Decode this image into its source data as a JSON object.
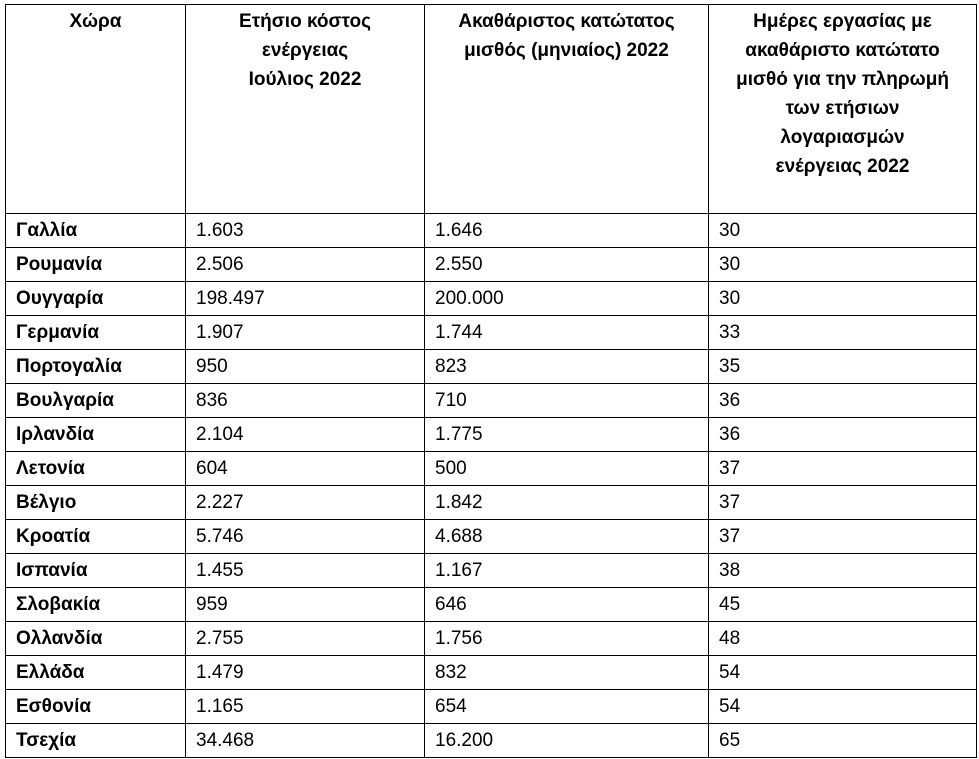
{
  "table": {
    "headers": [
      "Χώρα",
      "Ετήσιο κόστος\nενέργειας\nΙούλιος 2022",
      "Ακαθάριστος κατώτατος\nμισθός (μηνιαίος) 2022",
      "Ημέρες εργασίας με\nακαθάριστο κατώτατο\nμισθό για την πληρωμή\nτων ετήσιων\nλογαριασμών\nενέργειας 2022"
    ],
    "rows": [
      {
        "country": "Γαλλία",
        "cost": "1.603",
        "wage": "1.646",
        "days": "30"
      },
      {
        "country": "Ρουμανία",
        "cost": "2.506",
        "wage": "2.550",
        "days": "30"
      },
      {
        "country": "Ουγγαρία",
        "cost": "198.497",
        "wage": "200.000",
        "days": "30"
      },
      {
        "country": "Γερμανία",
        "cost": "1.907",
        "wage": "1.744",
        "days": "33"
      },
      {
        "country": "Πορτογαλία",
        "cost": "950",
        "wage": "823",
        "days": "35"
      },
      {
        "country": "Βουλγαρία",
        "cost": "836",
        "wage": "710",
        "days": "36"
      },
      {
        "country": "Ιρλανδία",
        "cost": "2.104",
        "wage": "1.775",
        "days": "36"
      },
      {
        "country": "Λετονία",
        "cost": "604",
        "wage": "500",
        "days": "37"
      },
      {
        "country": "Βέλγιο",
        "cost": "2.227",
        "wage": "1.842",
        "days": "37"
      },
      {
        "country": "Κροατία",
        "cost": "5.746",
        "wage": "4.688",
        "days": "37"
      },
      {
        "country": "Ισπανία",
        "cost": "1.455",
        "wage": "1.167",
        "days": "38"
      },
      {
        "country": "Σλοβακία",
        "cost": "959",
        "wage": "646",
        "days": "45"
      },
      {
        "country": "Ολλανδία",
        "cost": "2.755",
        "wage": "1.756",
        "days": "48"
      },
      {
        "country": "Ελλάδα",
        "cost": "1.479",
        "wage": "832",
        "days": "54"
      },
      {
        "country": "Εσθονία",
        "cost": "1.165",
        "wage": "654",
        "days": "54"
      },
      {
        "country": "Τσεχία",
        "cost": "34.468",
        "wage": "16.200",
        "days": "65"
      }
    ]
  }
}
